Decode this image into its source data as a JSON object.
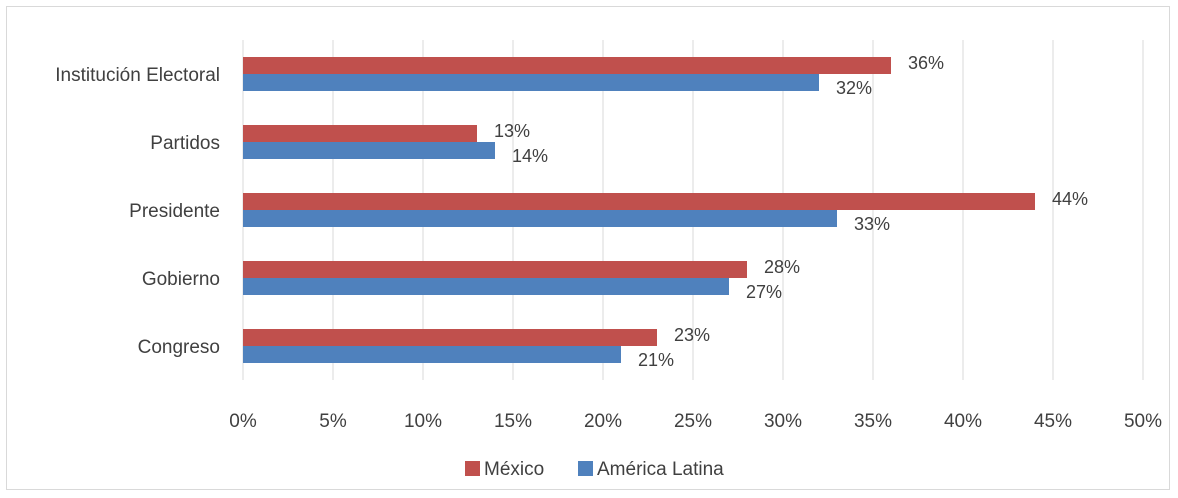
{
  "chart_data": {
    "type": "bar",
    "orientation": "horizontal",
    "categories": [
      "Institución Electoral",
      "Partidos",
      "Presidente",
      "Gobierno",
      "Congreso"
    ],
    "series": [
      {
        "name": "México",
        "color": "#c0504d",
        "values": [
          36,
          13,
          44,
          28,
          23
        ],
        "labels": [
          "36%",
          "13%",
          "44%",
          "28%",
          "23%"
        ]
      },
      {
        "name": "América Latina",
        "color": "#4f81bd",
        "values": [
          32,
          14,
          33,
          27,
          21
        ],
        "labels": [
          "32%",
          "14%",
          "33%",
          "27%",
          "21%"
        ]
      }
    ],
    "xlim": [
      0,
      50
    ],
    "xticks": [
      "0%",
      "5%",
      "10%",
      "15%",
      "20%",
      "25%",
      "30%",
      "35%",
      "40%",
      "45%",
      "50%"
    ],
    "grid": true,
    "legend_position": "bottom"
  }
}
